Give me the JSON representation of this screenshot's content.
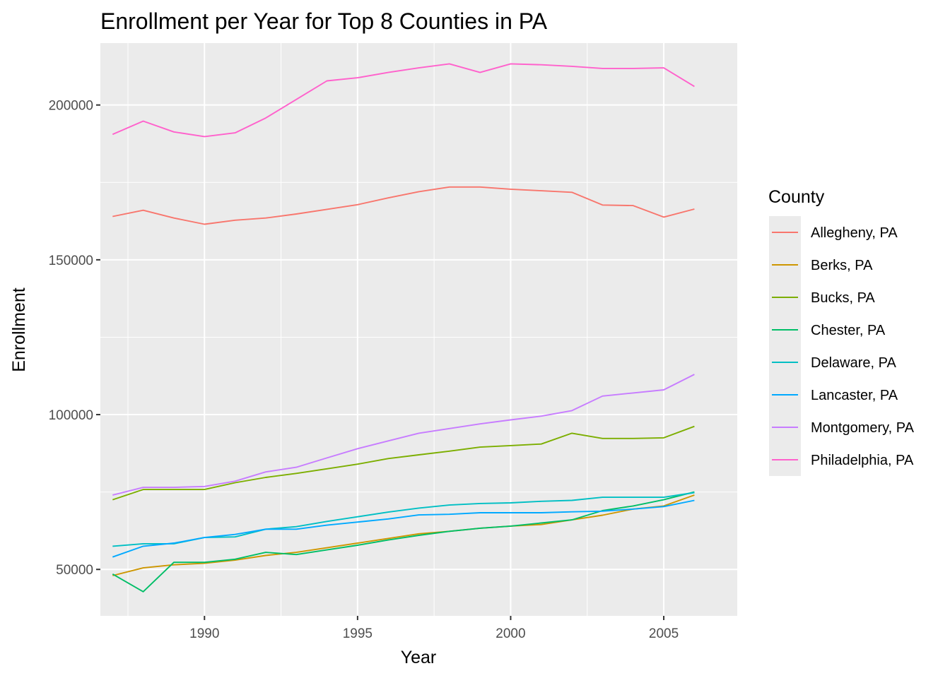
{
  "chart_data": {
    "type": "line",
    "title": "Enrollment per Year for Top 8 Counties in PA",
    "xlabel": "Year",
    "ylabel": "Enrollment",
    "xlim": [
      1986.6,
      2007.4
    ],
    "ylim": [
      35000,
      220000
    ],
    "x_ticks": [
      1990,
      1995,
      2000,
      2005
    ],
    "y_ticks": [
      50000,
      100000,
      150000,
      200000
    ],
    "x_tick_labels": [
      "1990",
      "1995",
      "2000",
      "2005"
    ],
    "y_tick_labels": [
      "50000",
      "100000",
      "150000",
      "200000"
    ],
    "grid": true,
    "legend_title": "County",
    "legend_position": "right",
    "x": [
      1987,
      1988,
      1989,
      1990,
      1991,
      1992,
      1993,
      1994,
      1995,
      1996,
      1997,
      1998,
      1999,
      2000,
      2001,
      2002,
      2003,
      2004,
      2005,
      2006
    ],
    "series": [
      {
        "name": "Allegheny, PA",
        "color": "#F8766D",
        "values": [
          164000,
          166000,
          163500,
          161500,
          162800,
          163500,
          164800,
          166300,
          167800,
          170000,
          172000,
          173500,
          173500,
          172800,
          172300,
          171800,
          167700,
          167500,
          163800,
          166400
        ]
      },
      {
        "name": "Berks, PA",
        "color": "#CD9600",
        "values": [
          48000,
          50500,
          51500,
          52000,
          53000,
          54500,
          55500,
          57000,
          58500,
          60000,
          61500,
          62300,
          63300,
          64000,
          64500,
          66000,
          67500,
          69500,
          70500,
          74000
        ]
      },
      {
        "name": "Bucks, PA",
        "color": "#7CAE00",
        "values": [
          72500,
          75800,
          75800,
          75800,
          78000,
          79700,
          81000,
          82500,
          84000,
          85800,
          87000,
          88200,
          89500,
          90000,
          90500,
          94000,
          92300,
          92300,
          92500,
          96200
        ]
      },
      {
        "name": "Chester, PA",
        "color": "#00BE67",
        "values": [
          48500,
          42800,
          52300,
          52300,
          53300,
          55500,
          54800,
          56300,
          57800,
          59500,
          61000,
          62300,
          63300,
          64000,
          65000,
          66000,
          69000,
          70500,
          72500,
          75000
        ]
      },
      {
        "name": "Delaware, PA",
        "color": "#00BFC4",
        "values": [
          57500,
          58300,
          58300,
          60300,
          60500,
          63000,
          63800,
          65500,
          67000,
          68500,
          69800,
          70800,
          71300,
          71500,
          72000,
          72300,
          73300,
          73300,
          73300,
          74800
        ]
      },
      {
        "name": "Lancaster, PA",
        "color": "#00A9FF",
        "values": [
          54000,
          57500,
          58500,
          60300,
          61300,
          63000,
          63000,
          64300,
          65300,
          66300,
          67600,
          67800,
          68300,
          68300,
          68300,
          68600,
          68800,
          69500,
          70300,
          72300
        ]
      },
      {
        "name": "Montgomery, PA",
        "color": "#C77CFF",
        "values": [
          74000,
          76500,
          76500,
          76800,
          78500,
          81500,
          83000,
          86000,
          89000,
          91500,
          94000,
          95500,
          97000,
          98300,
          99500,
          101300,
          106000,
          107000,
          108000,
          113000
        ]
      },
      {
        "name": "Philadelphia, PA",
        "color": "#FF61CC",
        "values": [
          190500,
          194800,
          191300,
          189800,
          191000,
          195800,
          201800,
          207800,
          208800,
          210500,
          212000,
          213300,
          210500,
          213300,
          213000,
          212500,
          211800,
          211800,
          212000,
          206000
        ]
      }
    ]
  }
}
